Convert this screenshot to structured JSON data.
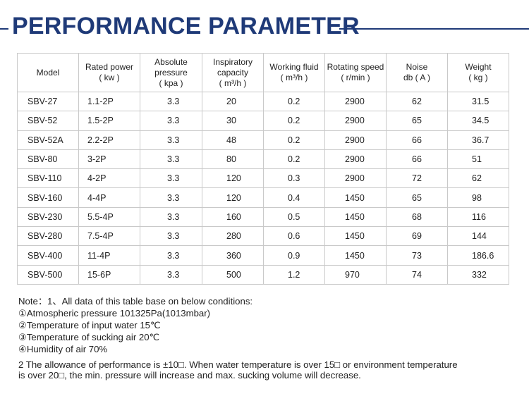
{
  "title": "PERFORMANCE PARAMETER",
  "header": [
    [
      "Model"
    ],
    [
      "Rated power",
      "( kw )"
    ],
    [
      "Absolute",
      "pressure",
      "( kpa )"
    ],
    [
      "Inspiratory",
      "capacity",
      "( m³/h )"
    ],
    [
      "Working fluid",
      "( m³/h )"
    ],
    [
      "Rotating speed",
      "( r/min )"
    ],
    [
      "Noise",
      "db ( A )"
    ],
    [
      "Weight",
      "( kg )"
    ]
  ],
  "rows": [
    [
      "SBV-27",
      "1.1-2P",
      "3.3",
      "20",
      "0.2",
      "2900",
      "62",
      "31.5"
    ],
    [
      "SBV-52",
      "1.5-2P",
      "3.3",
      "30",
      "0.2",
      "2900",
      "65",
      "34.5"
    ],
    [
      "SBV-52A",
      "2.2-2P",
      "3.3",
      "48",
      "0.2",
      "2900",
      "66",
      "36.7"
    ],
    [
      "SBV-80",
      "3-2P",
      "3.3",
      "80",
      "0.2",
      "2900",
      "66",
      "51"
    ],
    [
      "SBV-110",
      "4-2P",
      "3.3",
      "120",
      "0.3",
      "2900",
      "72",
      "62"
    ],
    [
      "SBV-160",
      "4-4P",
      "3.3",
      "120",
      "0.4",
      "1450",
      "65",
      "98"
    ],
    [
      "SBV-230",
      "5.5-4P",
      "3.3",
      "160",
      "0.5",
      "1450",
      "68",
      "116"
    ],
    [
      "SBV-280",
      "7.5-4P",
      "3.3",
      "280",
      "0.6",
      "1450",
      "69",
      "144"
    ],
    [
      "SBV-400",
      "11-4P",
      "3.3",
      "360",
      "0.9",
      "1450",
      "73",
      "186.6"
    ],
    [
      "SBV-500",
      "15-6P",
      "3.3",
      "500",
      "1.2",
      "970",
      "74",
      "332"
    ]
  ],
  "notes": {
    "intro": "Note：1、All data of this table base on below conditions:",
    "conditions": [
      "①Atmospheric pressure 101325Pa(1013mbar)",
      "②Temperature of input water 15℃",
      "③Temperature of sucking air 20℃",
      "④Humidity of air 70%"
    ],
    "allowance_line1": "2 The allowance of performance is ±10□.  When water temperature is over 15□ or environment temperature",
    "allowance_line2": "is over 20□,  the min. pressure will increase and max. sucking volume will decrease."
  },
  "colors": {
    "title": "#1f3a78",
    "border": "#c9c9c9"
  }
}
